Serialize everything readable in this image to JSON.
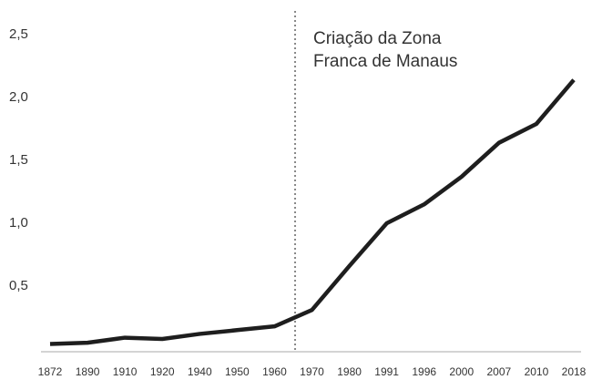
{
  "chart_data": {
    "type": "line",
    "annotation": [
      "Criação da Zona",
      "Franca de Manaus"
    ],
    "categories": [
      "1872",
      "1890",
      "1910",
      "1920",
      "1940",
      "1950",
      "1960",
      "1970",
      "1980",
      "1991",
      "1996",
      "2000",
      "2007",
      "2010",
      "2018"
    ],
    "values": [
      0.04,
      0.05,
      0.09,
      0.08,
      0.12,
      0.15,
      0.18,
      0.31,
      0.66,
      1.0,
      1.15,
      1.37,
      1.64,
      1.79,
      2.14
    ],
    "color": "#1e1e1e",
    "ylim": [
      0,
      2.5
    ],
    "yticks": [
      {
        "value": 0.5,
        "label": "0,5"
      },
      {
        "value": 1.0,
        "label": "1,0"
      },
      {
        "value": 1.5,
        "label": "1,5"
      },
      {
        "value": 2.0,
        "label": "2,0"
      },
      {
        "value": 2.5,
        "label": "2,5"
      }
    ],
    "grid": false
  }
}
